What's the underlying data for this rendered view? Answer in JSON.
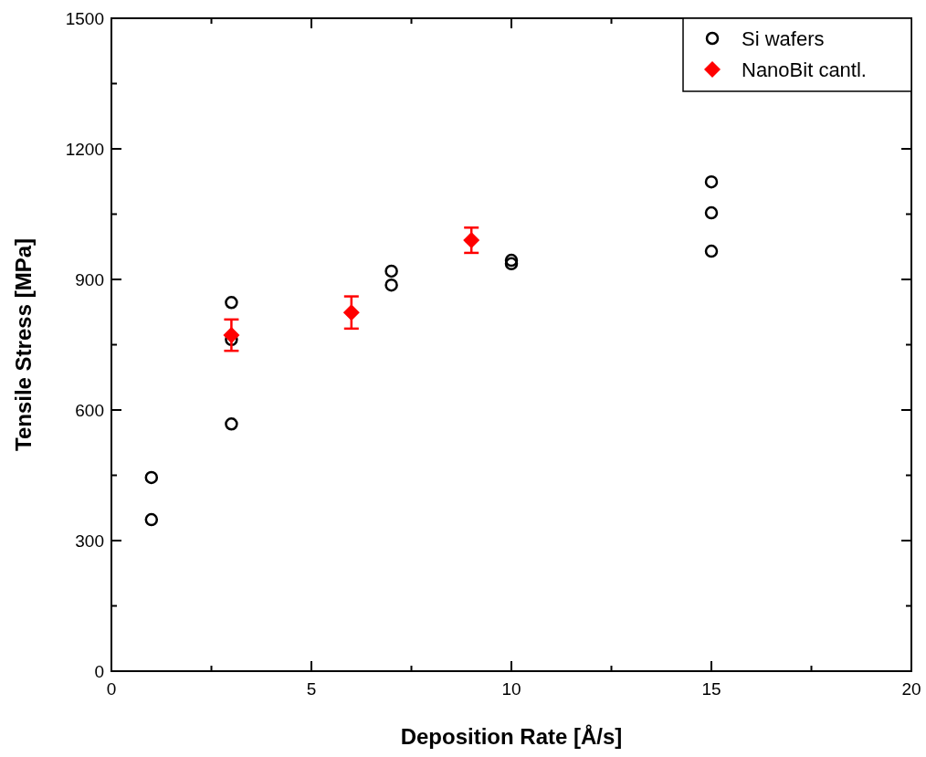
{
  "chart_data": {
    "type": "scatter",
    "xlabel": "Deposition Rate [Å/s]",
    "ylabel": "Tensile Stress [MPa]",
    "xlim": [
      0,
      20
    ],
    "ylim": [
      0,
      1500
    ],
    "xticks": [
      0,
      {
        "value": 2.5,
        "label": null
      },
      5,
      {
        "value": 7.5,
        "label": null
      },
      10,
      {
        "value": 12.5,
        "label": null
      },
      15,
      {
        "value": 17.5,
        "label": null
      },
      20
    ],
    "yticks": [
      0,
      {
        "value": 150,
        "label": null
      },
      300,
      {
        "value": 450,
        "label": null
      },
      600,
      {
        "value": 750,
        "label": null
      },
      900,
      {
        "value": 1050,
        "label": null
      },
      1200,
      {
        "value": 1350,
        "label": null
      },
      1500
    ],
    "grid": false,
    "legend": "top right",
    "series": [
      {
        "name": "Si wafers",
        "color": "#000000",
        "marker": "circle",
        "x": [
          1,
          1,
          3,
          3,
          3,
          7,
          7,
          10,
          10,
          15,
          15,
          15
        ],
        "values": [
          445,
          348,
          847,
          762,
          568,
          919,
          887,
          944,
          936,
          1124,
          1053,
          965
        ]
      },
      {
        "name": "NanoBit cantl.",
        "color": "#ff0000",
        "marker": "diamond",
        "x": [
          3,
          6,
          9
        ],
        "values": [
          772,
          824,
          990
        ],
        "errors": [
          36,
          37,
          29
        ]
      }
    ]
  }
}
